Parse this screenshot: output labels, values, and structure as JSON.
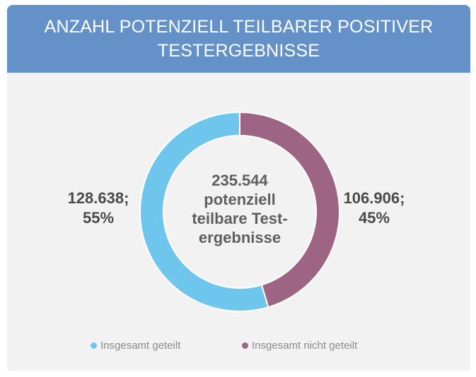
{
  "header": {
    "title_line1": "ANZAHL POTENZIELL TEILBARER POSITIVER",
    "title_line2": "TESTERGEBNISSE"
  },
  "chart_data": {
    "type": "pie",
    "variant": "donut",
    "title": "ANZAHL POTENZIELL TEILBARER POSITIVER TESTERGEBNISSE",
    "center_label": [
      "235.544",
      "potenziell",
      "teilbare Test-",
      "ergebnisse"
    ],
    "total": 235544,
    "slices": [
      {
        "name": "Insgesamt nicht geteilt",
        "value": 106906,
        "percent": 45,
        "label_line1": "106.906;",
        "label_line2": "45%",
        "color": "#9e6483"
      },
      {
        "name": "Insgesamt geteilt",
        "value": 128638,
        "percent": 55,
        "label_line1": "128.638;",
        "label_line2": "55%",
        "color": "#6ec6ed"
      }
    ],
    "legend": [
      {
        "label": "Insgesamt geteilt",
        "color": "#6ec6ed"
      },
      {
        "label": "Insgesamt nicht geteilt",
        "color": "#9e6483"
      }
    ],
    "legend_position": "bottom"
  }
}
